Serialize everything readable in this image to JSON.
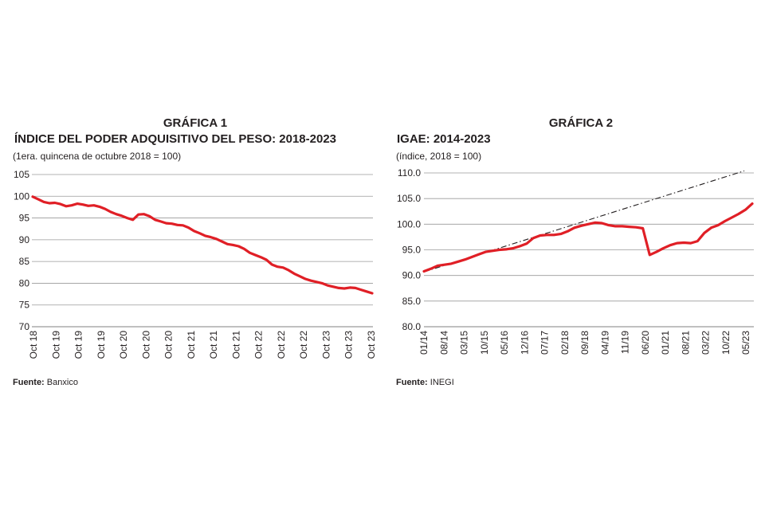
{
  "chart_data": [
    {
      "type": "line",
      "kicker": "GRÁFICA 1",
      "title": "ÍNDICE DEL PODER ADQUISITIVO DEL PESO: 2018-2023",
      "subtitle": "(1era. quincena de octubre 2018 = 100)",
      "source_label": "Fuente:",
      "source_name": "Banxico",
      "ylim": [
        70,
        105
      ],
      "yticks": [
        105,
        100,
        95,
        90,
        85,
        80,
        75,
        70
      ],
      "ytick_labels": [
        "105",
        "100",
        "95",
        "90",
        "85",
        "80",
        "75",
        "70"
      ],
      "xtick_labels": [
        "Oct 18",
        "Oct 19",
        "Oct 19",
        "Oct 19",
        "Oct 20",
        "Oct 20",
        "Oct 20",
        "Oct 21",
        "Oct 21",
        "Oct 21",
        "Oct 22",
        "Oct 22",
        "Oct 22",
        "Oct 23",
        "Oct 23",
        "Oct 23"
      ],
      "line_color": "#e01f26",
      "series": [
        {
          "name": "Índice del poder adquisitivo del peso",
          "values": [
            99.9,
            99.3,
            98.7,
            98.4,
            98.5,
            98.2,
            97.7,
            97.9,
            98.3,
            98.1,
            97.8,
            97.9,
            97.6,
            97.1,
            96.4,
            95.9,
            95.5,
            95.0,
            94.6,
            95.8,
            95.9,
            95.4,
            94.6,
            94.2,
            93.8,
            93.7,
            93.4,
            93.3,
            92.8,
            92.0,
            91.5,
            90.9,
            90.6,
            90.2,
            89.6,
            89.0,
            88.8,
            88.5,
            87.9,
            87.0,
            86.5,
            86.0,
            85.4,
            84.3,
            83.8,
            83.6,
            83.0,
            82.2,
            81.6,
            81.0,
            80.6,
            80.3,
            80.0,
            79.5,
            79.2,
            78.9,
            78.8,
            79.0,
            78.9,
            78.5,
            78.1,
            77.7
          ]
        }
      ]
    },
    {
      "type": "line",
      "kicker": "GRÁFICA 2",
      "title": "IGAE: 2014-2023",
      "subtitle": "(índice, 2018 = 100)",
      "source_label": "Fuente:",
      "source_name": "INEGI",
      "ylim": [
        80,
        110
      ],
      "yticks": [
        110,
        105,
        100,
        95,
        90,
        85,
        80
      ],
      "ytick_labels": [
        "110.0",
        "105.0",
        "100.0",
        "95.0",
        "90.0",
        "85.0",
        "80.0"
      ],
      "xtick_labels": [
        "01/14",
        "08/14",
        "03/15",
        "10/15",
        "05/16",
        "12/16",
        "07/17",
        "02/18",
        "09/18",
        "04/19",
        "11/19",
        "06/20",
        "01/21",
        "08/21",
        "03/22",
        "10/22",
        "05/23"
      ],
      "line_color": "#e01f26",
      "trend_color": "#231f20",
      "trend": {
        "name": "Tendencia",
        "start": 90.7,
        "end": 110.4
      },
      "series": [
        {
          "name": "IGAE",
          "values": [
            90.8,
            91.3,
            91.9,
            92.1,
            92.3,
            92.7,
            93.1,
            93.6,
            94.1,
            94.6,
            94.8,
            95.0,
            95.1,
            95.3,
            95.7,
            96.2,
            97.3,
            97.8,
            97.9,
            97.9,
            98.1,
            98.6,
            99.3,
            99.7,
            100.0,
            100.3,
            100.2,
            99.8,
            99.6,
            99.6,
            99.5,
            99.4,
            99.2,
            94.0,
            94.6,
            95.3,
            95.9,
            96.3,
            96.4,
            96.3,
            96.7,
            98.3,
            99.3,
            99.8,
            100.6,
            101.3,
            102.0,
            102.8,
            104.0
          ]
        }
      ]
    }
  ]
}
